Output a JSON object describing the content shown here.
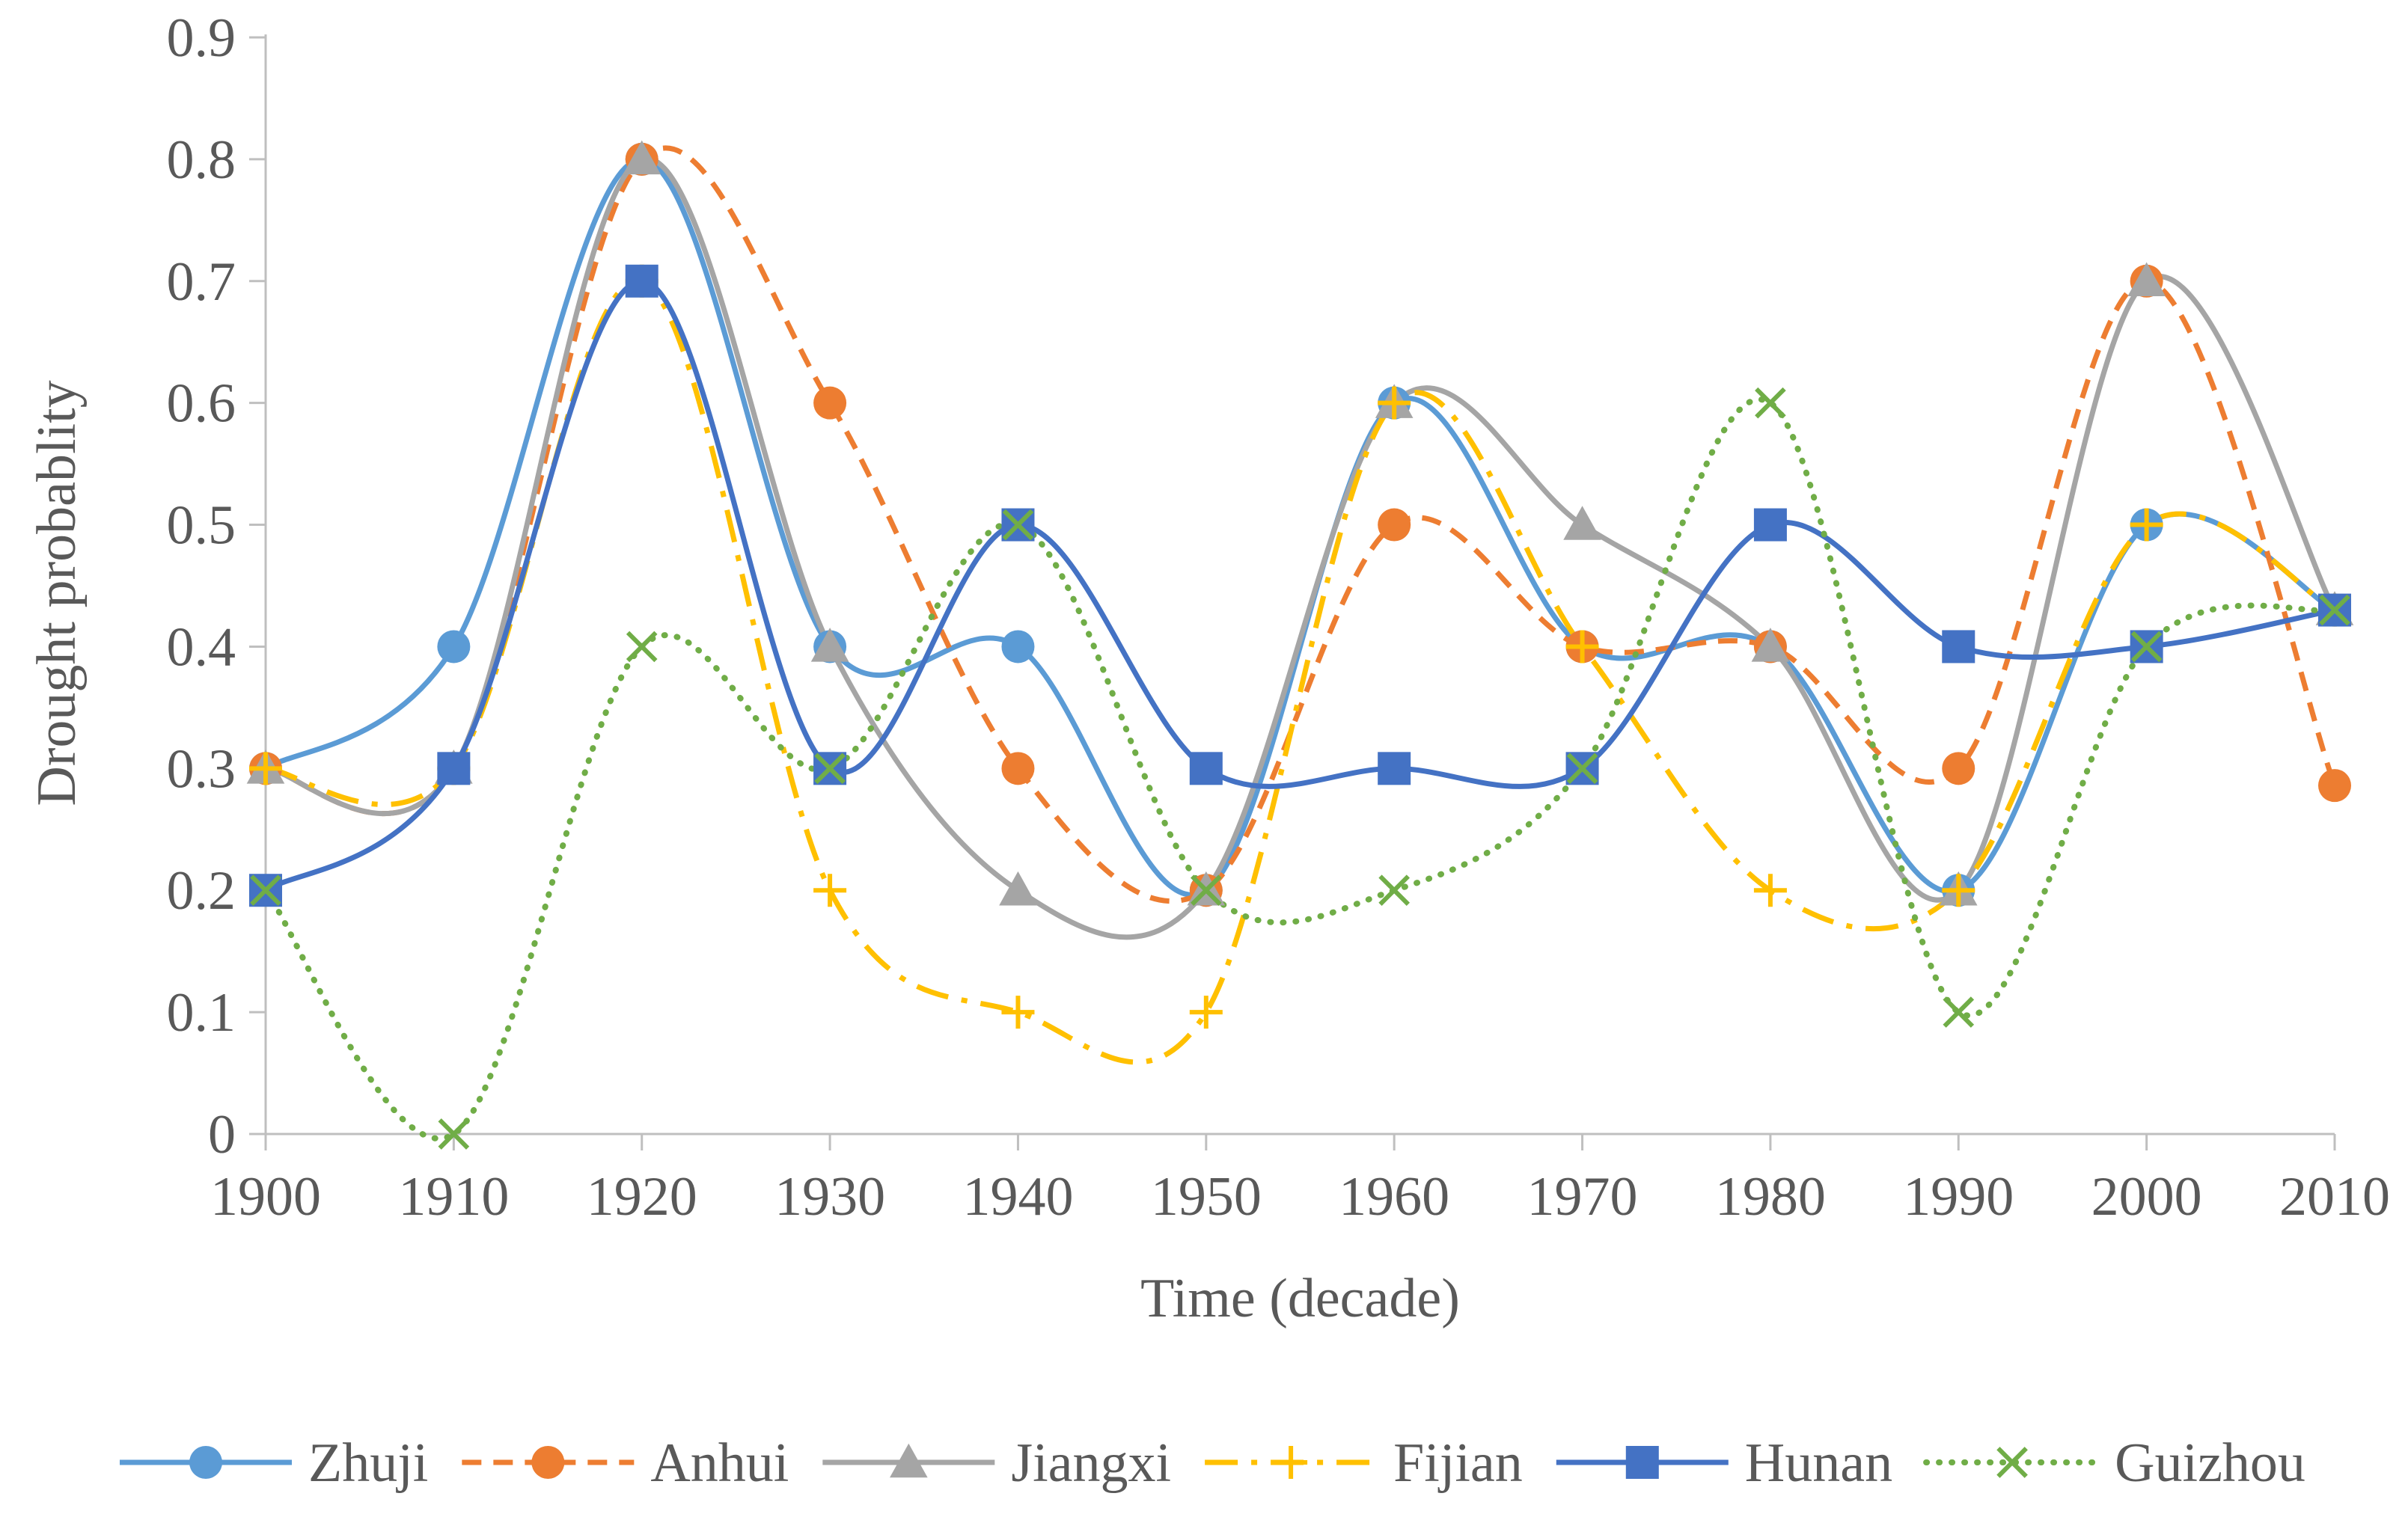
{
  "chart_data": {
    "type": "line",
    "title": "",
    "xlabel": "Time (decade)",
    "ylabel": "Drought probablity",
    "x": [
      1900,
      1910,
      1920,
      1930,
      1940,
      1950,
      1960,
      1970,
      1980,
      1990,
      2000,
      2010
    ],
    "x_tick_labels": [
      "1900",
      "1910",
      "1920",
      "1930",
      "1940",
      "1950",
      "1960",
      "1970",
      "1980",
      "1990",
      "2000",
      "2010"
    ],
    "ylim": [
      0,
      0.9
    ],
    "y_ticks": [
      0,
      0.1,
      0.2,
      0.3,
      0.4,
      0.5,
      0.6,
      0.7,
      0.8,
      0.9
    ],
    "y_tick_labels": [
      "0",
      "0.1",
      "0.2",
      "0.3",
      "0.4",
      "0.5",
      "0.6",
      "0.7",
      "0.8",
      "0.9"
    ],
    "grid": false,
    "legend_position": "bottom",
    "series": [
      {
        "name": "Zhuji",
        "color": "#5B9BD5",
        "marker": "circle",
        "dash": "solid",
        "values": [
          0.3,
          0.4,
          0.8,
          0.4,
          0.4,
          0.2,
          0.6,
          0.4,
          0.4,
          0.2,
          0.5,
          0.43
        ]
      },
      {
        "name": "Anhui",
        "color": "#ED7D31",
        "marker": "circle",
        "dash": "dashed",
        "values": [
          0.3,
          0.3,
          0.8,
          0.6,
          0.3,
          0.2,
          0.5,
          0.4,
          0.4,
          0.3,
          0.7,
          0.286
        ]
      },
      {
        "name": "Jiangxi",
        "color": "#A5A5A5",
        "marker": "triangle",
        "dash": "solid",
        "values": [
          0.3,
          0.3,
          0.8,
          0.4,
          0.2,
          0.2,
          0.6,
          0.5,
          0.4,
          0.2,
          0.7,
          0.43
        ]
      },
      {
        "name": "Fijian",
        "color": "#FFC000",
        "marker": "plus",
        "dash": "dashdot",
        "values": [
          0.3,
          0.3,
          0.7,
          0.2,
          0.1,
          0.1,
          0.6,
          0.4,
          0.2,
          0.2,
          0.5,
          0.43
        ]
      },
      {
        "name": "Hunan",
        "color": "#4472C4",
        "marker": "square",
        "dash": "solid",
        "values": [
          0.2,
          0.3,
          0.7,
          0.3,
          0.5,
          0.3,
          0.3,
          0.3,
          0.5,
          0.4,
          0.4,
          0.43
        ]
      },
      {
        "name": "Guizhou",
        "color": "#70AD47",
        "marker": "cross",
        "dash": "dotted",
        "values": [
          0.2,
          0.0,
          0.4,
          0.3,
          0.5,
          0.2,
          0.2,
          0.3,
          0.6,
          0.1,
          0.4,
          0.43
        ]
      }
    ]
  }
}
